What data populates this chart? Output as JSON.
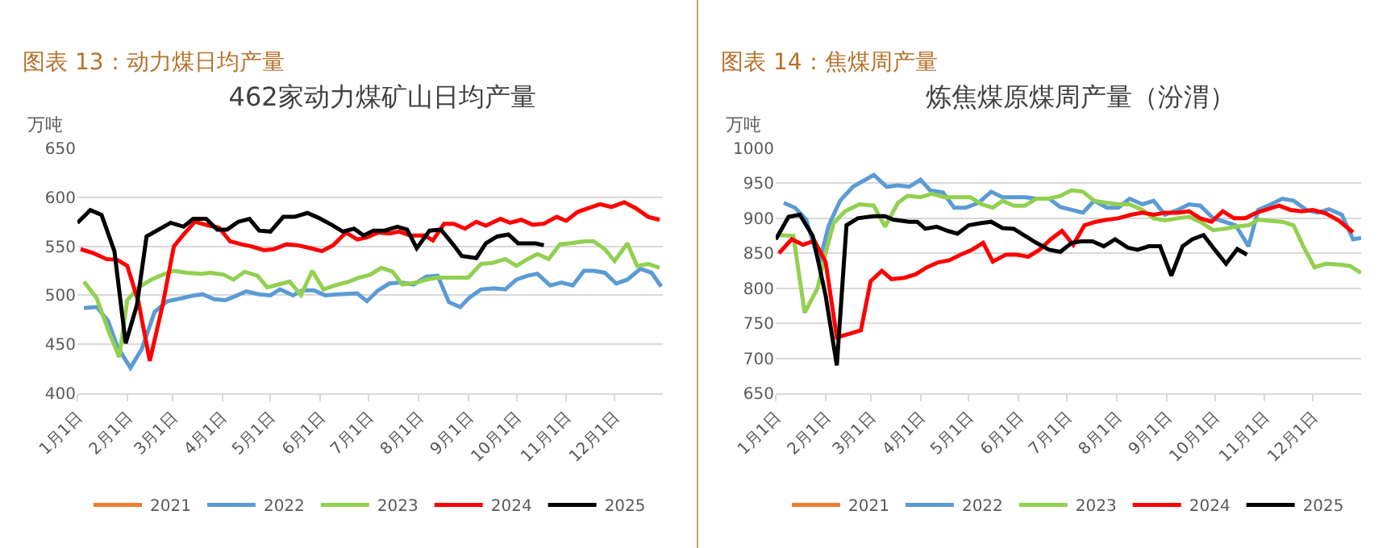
{
  "chart_data": [
    {
      "type": "line",
      "title": "462家动力煤矿山日均产量",
      "annotations": [
        "图表 13：动力煤日均产量"
      ],
      "ylabel": "万吨",
      "xlim": [
        "--01-01",
        "--12-31"
      ],
      "xticks": [
        {
          "value": "--01-01",
          "label": "1月1日"
        },
        {
          "value": "--02-01",
          "label": "2月1日"
        },
        {
          "value": "--03-01",
          "label": "3月1日"
        },
        {
          "value": "--04-01",
          "label": "4月1日"
        },
        {
          "value": "--05-01",
          "label": "5月1日"
        },
        {
          "value": "--06-01",
          "label": "6月1日"
        },
        {
          "value": "--07-01",
          "label": "7月1日"
        },
        {
          "value": "--08-01",
          "label": "8月1日"
        },
        {
          "value": "--09-01",
          "label": "9月1日"
        },
        {
          "value": "--10-01",
          "label": "10月1日"
        },
        {
          "value": "--11-01",
          "label": "11月1日"
        },
        {
          "value": "--12-01",
          "label": "12月1日"
        }
      ],
      "ylim": [
        400,
        650
      ],
      "yticks": [
        400,
        450,
        500,
        550,
        600,
        650
      ],
      "grid": "y",
      "legend": "bottom",
      "line_style": "solid",
      "marker": "none",
      "series": [
        {
          "name": "2021",
          "color": "#ed7d31"
        },
        {
          "name": "2022",
          "color": "#5b9bd5",
          "x": [
            "--01-05",
            "--01-13",
            "--01-20",
            "--01-26",
            "--02-03",
            "--02-10",
            "--02-18",
            "--02-26",
            "--03-07",
            "--03-15",
            "--03-20",
            "--03-27",
            "--04-03",
            "--04-09",
            "--04-16",
            "--04-24",
            "--05-01",
            "--05-07",
            "--05-15",
            "--05-21",
            "--05-28",
            "--06-04",
            "--06-12",
            "--06-24",
            "--06-30",
            "--07-07",
            "--07-14",
            "--07-21",
            "--07-29",
            "--08-06",
            "--08-13",
            "--08-20",
            "--08-27",
            "--09-02",
            "--09-09",
            "--09-17",
            "--09-24",
            "--10-01",
            "--10-08",
            "--10-14",
            "--10-22",
            "--10-29",
            "--11-05",
            "--11-12",
            "--11-18",
            "--11-25",
            "--12-02",
            "--12-09",
            "--12-17",
            "--12-24",
            "--12-30"
          ],
          "values": [
            487,
            488,
            474,
            447,
            426,
            445,
            483,
            494,
            497,
            500,
            501,
            496,
            495,
            499,
            504,
            501,
            500,
            506,
            500,
            505,
            505,
            500,
            501,
            502,
            494,
            505,
            512,
            513,
            511,
            519,
            520,
            493,
            488,
            498,
            506,
            507,
            506,
            516,
            520,
            522,
            510,
            513,
            510,
            525,
            525,
            523,
            512,
            516,
            527,
            523,
            509
          ]
        },
        {
          "name": "2023",
          "color": "#92d050",
          "x": [
            "--01-05",
            "--01-13",
            "--01-20",
            "--01-27",
            "--02-01",
            "--02-08",
            "--02-16",
            "--02-23",
            "--03-02",
            "--03-10",
            "--03-19",
            "--03-25",
            "--04-02",
            "--04-08",
            "--04-15",
            "--04-23",
            "--04-29",
            "--05-06",
            "--05-13",
            "--05-20",
            "--05-27",
            "--06-03",
            "--06-10",
            "--06-19",
            "--06-25",
            "--07-02",
            "--07-09",
            "--07-16",
            "--07-22",
            "--07-31",
            "--08-06",
            "--08-13",
            "--08-20",
            "--09-01",
            "--09-09",
            "--09-16",
            "--09-24",
            "--10-01",
            "--10-08",
            "--10-14",
            "--10-21",
            "--10-28",
            "--11-03",
            "--11-12",
            "--11-18",
            "--11-25",
            "--12-01",
            "--12-09",
            "--12-15",
            "--12-22",
            "--12-29"
          ],
          "values": [
            514,
            497,
            465,
            437,
            495,
            508,
            516,
            521,
            525,
            523,
            522,
            523,
            521,
            516,
            524,
            520,
            508,
            511,
            514,
            500,
            525,
            506,
            510,
            514,
            518,
            521,
            528,
            524,
            511,
            513,
            516,
            518,
            518,
            518,
            532,
            533,
            537,
            530,
            537,
            542,
            537,
            552,
            553,
            555,
            555,
            547,
            535,
            553,
            530,
            532,
            528
          ]
        },
        {
          "name": "2024",
          "color": "#ff0000",
          "x": [
            "--01-03",
            "--01-11",
            "--01-19",
            "--01-26",
            "--02-01",
            "--02-08",
            "--02-15",
            "--02-23",
            "--03-02",
            "--03-08",
            "--03-15",
            "--03-24",
            "--03-30",
            "--04-06",
            "--04-13",
            "--04-19",
            "--04-27",
            "--05-03",
            "--05-11",
            "--05-18",
            "--05-26",
            "--06-02",
            "--06-09",
            "--06-17",
            "--06-24",
            "--06-30",
            "--07-07",
            "--07-14",
            "--07-20",
            "--07-27",
            "--08-05",
            "--08-10",
            "--08-17",
            "--08-23",
            "--08-30",
            "--09-06",
            "--09-12",
            "--09-21",
            "--09-27",
            "--10-04",
            "--10-11",
            "--10-18",
            "--10-26",
            "--11-01",
            "--11-08",
            "--11-15",
            "--11-22",
            "--11-29",
            "--12-07",
            "--12-14",
            "--12-22",
            "--12-29"
          ],
          "values": [
            547,
            543,
            537,
            536,
            530,
            493,
            433,
            490,
            550,
            562,
            575,
            571,
            569,
            555,
            552,
            550,
            546,
            547,
            552,
            551,
            548,
            545,
            551,
            564,
            557,
            559,
            564,
            563,
            565,
            561,
            561,
            556,
            573,
            573,
            568,
            575,
            571,
            578,
            574,
            577,
            572,
            573,
            580,
            576,
            585,
            589,
            593,
            590,
            595,
            589,
            580,
            577
          ]
        },
        {
          "name": "2025",
          "color": "#000000",
          "x": [
            "--01-01",
            "--01-09",
            "--01-16",
            "--01-24",
            "--01-31",
            "--02-07",
            "--02-13",
            "--02-28",
            "--03-08",
            "--03-14",
            "--03-22",
            "--03-29",
            "--04-04",
            "--04-11",
            "--04-18",
            "--04-24",
            "--05-01",
            "--05-09",
            "--05-16",
            "--05-24",
            "--05-31",
            "--06-08",
            "--06-15",
            "--06-22",
            "--06-28",
            "--07-04",
            "--07-11",
            "--07-19",
            "--07-25",
            "--07-31",
            "--08-08",
            "--08-15",
            "--08-23",
            "--08-28",
            "--09-06",
            "--09-12",
            "--09-19",
            "--09-26",
            "--10-02",
            "--10-13",
            "--10-18"
          ],
          "values": [
            574,
            587,
            582,
            545,
            451,
            490,
            560,
            574,
            570,
            578,
            578,
            567,
            567,
            575,
            578,
            566,
            565,
            580,
            580,
            584,
            579,
            572,
            565,
            568,
            561,
            566,
            566,
            570,
            567,
            548,
            566,
            567,
            551,
            540,
            538,
            553,
            560,
            562,
            553,
            553,
            551
          ]
        }
      ]
    },
    {
      "type": "line",
      "title": "炼焦煤原煤周产量（汾渭）",
      "annotations": [
        "图表 14：焦煤周产量"
      ],
      "ylabel": "万吨",
      "xlim": [
        "--01-01",
        "--12-31"
      ],
      "xticks": [
        {
          "value": "--01-01",
          "label": "1月1日"
        },
        {
          "value": "--02-01",
          "label": "2月1日"
        },
        {
          "value": "--03-01",
          "label": "3月1日"
        },
        {
          "value": "--04-01",
          "label": "4月1日"
        },
        {
          "value": "--05-01",
          "label": "5月1日"
        },
        {
          "value": "--06-01",
          "label": "6月1日"
        },
        {
          "value": "--07-01",
          "label": "7月1日"
        },
        {
          "value": "--08-01",
          "label": "8月1日"
        },
        {
          "value": "--09-01",
          "label": "9月1日"
        },
        {
          "value": "--10-01",
          "label": "10月1日"
        },
        {
          "value": "--11-01",
          "label": "11月1日"
        },
        {
          "value": "--12-01",
          "label": "12月1日"
        }
      ],
      "ylim": [
        650,
        1000
      ],
      "yticks": [
        650,
        700,
        750,
        800,
        850,
        900,
        950,
        1000
      ],
      "grid": "y",
      "legend": "bottom",
      "line_style": "solid",
      "marker": "none",
      "series": [
        {
          "name": "2021",
          "color": "#ed7d31"
        },
        {
          "name": "2022",
          "color": "#5b9bd5",
          "x": [
            "--01-06",
            "--01-13",
            "--01-20",
            "--01-28",
            "--02-03",
            "--02-10",
            "--02-18",
            "--03-03",
            "--03-11",
            "--03-18",
            "--03-25",
            "--04-01",
            "--04-07",
            "--04-15",
            "--04-22",
            "--04-29",
            "--05-07",
            "--05-15",
            "--05-22",
            "--05-29",
            "--06-05",
            "--06-12",
            "--06-20",
            "--06-27",
            "--07-04",
            "--07-11",
            "--07-18",
            "--07-26",
            "--08-02",
            "--08-09",
            "--08-17",
            "--08-24",
            "--08-31",
            "--09-08",
            "--09-15",
            "--09-22",
            "--09-30",
            "--10-07",
            "--10-14",
            "--10-22",
            "--10-28",
            "--11-05",
            "--11-12",
            "--11-19",
            "--11-27",
            "--12-04",
            "--12-11",
            "--12-19",
            "--12-26",
            "--12-31"
          ],
          "values": [
            922,
            915,
            898,
            836,
            890,
            925,
            945,
            962,
            945,
            947,
            945,
            955,
            940,
            937,
            915,
            915,
            922,
            938,
            930,
            930,
            930,
            928,
            928,
            916,
            912,
            908,
            925,
            915,
            915,
            928,
            920,
            925,
            905,
            912,
            920,
            918,
            900,
            895,
            890,
            860,
            912,
            920,
            928,
            925,
            912,
            908,
            913,
            905,
            870,
            872
          ]
        },
        {
          "name": "2023",
          "color": "#92d050",
          "x": [
            "--01-03",
            "--01-12",
            "--01-19",
            "--01-27",
            "--02-01",
            "--02-06",
            "--02-13",
            "--02-22",
            "--03-03",
            "--03-10",
            "--03-18",
            "--03-24",
            "--04-01",
            "--04-08",
            "--04-16",
            "--04-22",
            "--05-02",
            "--05-09",
            "--05-16",
            "--05-22",
            "--05-29",
            "--06-05",
            "--06-12",
            "--06-20",
            "--06-27",
            "--07-04",
            "--07-11",
            "--07-18",
            "--07-26",
            "--08-02",
            "--08-09",
            "--08-17",
            "--08-24",
            "--08-31",
            "--09-08",
            "--09-15",
            "--09-22",
            "--09-30",
            "--10-07",
            "--10-14",
            "--10-22",
            "--10-28",
            "--11-05",
            "--11-12",
            "--11-19",
            "--11-25",
            "--12-02",
            "--12-09",
            "--12-17",
            "--12-24",
            "--12-31"
          ],
          "values": [
            876,
            875,
            765,
            800,
            850,
            893,
            910,
            920,
            918,
            888,
            922,
            932,
            930,
            935,
            930,
            930,
            930,
            920,
            915,
            925,
            918,
            918,
            928,
            928,
            932,
            940,
            938,
            925,
            922,
            920,
            920,
            912,
            900,
            897,
            900,
            902,
            895,
            883,
            885,
            888,
            890,
            898,
            896,
            895,
            890,
            860,
            830,
            835,
            834,
            832,
            822
          ]
        },
        {
          "name": "2024",
          "color": "#ff0000",
          "x": [
            "--01-03",
            "--01-11",
            "--01-18",
            "--01-25",
            "--02-01",
            "--02-08",
            "--02-16",
            "--02-23",
            "--03-01",
            "--03-08",
            "--03-14",
            "--03-22",
            "--03-29",
            "--04-05",
            "--04-12",
            "--04-19",
            "--04-26",
            "--05-03",
            "--05-10",
            "--05-16",
            "--05-24",
            "--05-31",
            "--06-07",
            "--06-14",
            "--06-21",
            "--06-28",
            "--07-05",
            "--07-12",
            "--07-19",
            "--07-26",
            "--08-02",
            "--08-10",
            "--08-17",
            "--08-24",
            "--08-31",
            "--09-08",
            "--09-15",
            "--09-22",
            "--09-29",
            "--10-06",
            "--10-13",
            "--10-20",
            "--10-27",
            "--11-10",
            "--11-17",
            "--11-24",
            "--12-01",
            "--12-09",
            "--12-17",
            "--12-26"
          ],
          "values": [
            850,
            870,
            862,
            868,
            838,
            730,
            735,
            740,
            810,
            825,
            813,
            815,
            820,
            830,
            837,
            840,
            848,
            855,
            865,
            838,
            848,
            848,
            845,
            855,
            870,
            882,
            862,
            890,
            895,
            898,
            900,
            905,
            908,
            905,
            908,
            908,
            910,
            900,
            895,
            910,
            900,
            900,
            908,
            918,
            912,
            910,
            912,
            907,
            897,
            880
          ]
        },
        {
          "name": "2025",
          "color": "#000000",
          "x": [
            "--01-01",
            "--01-09",
            "--01-16",
            "--01-24",
            "--02-01",
            "--02-08",
            "--02-14",
            "--02-21",
            "--03-03",
            "--03-10",
            "--03-15",
            "--03-25",
            "--03-30",
            "--04-04",
            "--04-11",
            "--04-18",
            "--04-24",
            "--05-01",
            "--05-08",
            "--05-15",
            "--05-22",
            "--05-29",
            "--06-05",
            "--06-12",
            "--06-20",
            "--06-27",
            "--07-04",
            "--07-10",
            "--07-17",
            "--07-24",
            "--07-31",
            "--08-08",
            "--08-14",
            "--08-21",
            "--08-28",
            "--09-04",
            "--09-11",
            "--09-17",
            "--09-24",
            "--10-01",
            "--10-08",
            "--10-15",
            "--10-21"
          ],
          "values": [
            870,
            902,
            905,
            875,
            790,
            690,
            890,
            900,
            903,
            903,
            898,
            895,
            895,
            885,
            888,
            882,
            878,
            890,
            893,
            895,
            886,
            885,
            875,
            865,
            855,
            852,
            865,
            867,
            867,
            860,
            870,
            858,
            855,
            860,
            860,
            818,
            860,
            870,
            876,
            855,
            835,
            856,
            848
          ]
        }
      ]
    }
  ]
}
